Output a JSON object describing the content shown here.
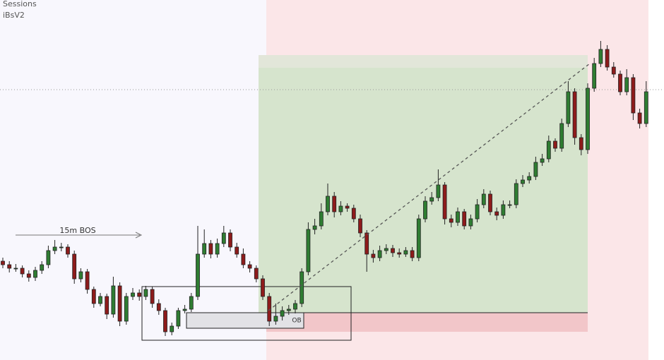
{
  "chart_data": {
    "type": "candlestick",
    "indicators": [
      "Sessions",
      "iBsV2"
    ],
    "annotations": {
      "bos": "15m BOS",
      "ob": "OB"
    },
    "ylim": [
      0,
      510
    ],
    "up_color": "#2f7d32",
    "down_color": "#8e1b1b",
    "open": [
      140,
      135,
      130,
      130,
      122,
      117,
      127,
      135,
      155,
      160,
      160,
      150,
      115,
      125,
      100,
      80,
      90,
      65,
      105,
      55,
      90,
      95,
      90,
      100,
      80,
      70,
      40,
      48,
      70,
      72,
      90,
      150,
      165,
      150,
      165,
      180,
      160,
      150,
      135,
      130,
      115,
      90,
      55,
      62,
      70,
      72,
      80,
      125,
      185,
      190,
      210,
      232,
      210,
      218,
      215,
      200,
      180,
      150,
      145,
      155,
      158,
      152,
      150,
      155,
      145,
      200,
      225,
      230,
      248,
      200,
      195,
      210,
      190,
      200,
      220,
      235,
      210,
      205,
      220,
      220,
      250,
      255,
      260,
      280,
      285,
      310,
      300,
      335,
      380,
      315,
      298,
      385,
      420,
      440,
      415,
      405,
      380,
      400,
      350,
      335
    ],
    "high": [
      145,
      140,
      136,
      134,
      127,
      132,
      140,
      162,
      170,
      166,
      164,
      155,
      130,
      129,
      104,
      95,
      94,
      118,
      110,
      95,
      102,
      100,
      105,
      104,
      86,
      74,
      53,
      74,
      78,
      95,
      190,
      185,
      170,
      172,
      190,
      185,
      166,
      158,
      140,
      134,
      120,
      95,
      80,
      76,
      78,
      85,
      130,
      195,
      200,
      222,
      250,
      238,
      225,
      222,
      220,
      206,
      184,
      156,
      162,
      164,
      163,
      158,
      160,
      160,
      206,
      232,
      238,
      270,
      252,
      206,
      216,
      214,
      206,
      228,
      242,
      240,
      216,
      226,
      226,
      256,
      262,
      266,
      288,
      292,
      318,
      314,
      342,
      395,
      385,
      320,
      392,
      428,
      452,
      446,
      422,
      410,
      412,
      405,
      356,
      395
    ],
    "low": [
      130,
      124,
      125,
      117,
      111,
      112,
      122,
      130,
      150,
      154,
      145,
      108,
      110,
      94,
      74,
      76,
      58,
      60,
      48,
      50,
      85,
      84,
      85,
      74,
      64,
      34,
      35,
      44,
      66,
      68,
      85,
      145,
      144,
      145,
      160,
      154,
      145,
      130,
      124,
      110,
      85,
      48,
      50,
      56,
      64,
      66,
      75,
      120,
      178,
      185,
      205,
      202,
      205,
      210,
      195,
      174,
      125,
      138,
      140,
      150,
      146,
      145,
      146,
      140,
      140,
      195,
      220,
      225,
      192,
      188,
      190,
      185,
      185,
      195,
      215,
      205,
      198,
      200,
      215,
      215,
      245,
      250,
      255,
      275,
      280,
      295,
      295,
      330,
      305,
      290,
      292,
      380,
      415,
      410,
      400,
      375,
      375,
      340,
      328,
      330
    ],
    "close": [
      135,
      130,
      130,
      122,
      117,
      127,
      135,
      155,
      160,
      160,
      150,
      115,
      125,
      100,
      80,
      90,
      65,
      105,
      55,
      90,
      95,
      90,
      100,
      80,
      70,
      40,
      48,
      70,
      72,
      90,
      150,
      165,
      150,
      165,
      180,
      160,
      150,
      135,
      130,
      115,
      90,
      55,
      62,
      70,
      72,
      80,
      125,
      185,
      190,
      210,
      232,
      210,
      218,
      215,
      200,
      180,
      150,
      145,
      155,
      158,
      152,
      150,
      155,
      145,
      200,
      225,
      230,
      248,
      200,
      195,
      210,
      190,
      200,
      220,
      235,
      210,
      205,
      220,
      220,
      250,
      255,
      260,
      280,
      285,
      310,
      300,
      335,
      380,
      315,
      298,
      385,
      420,
      440,
      415,
      405,
      380,
      400,
      350,
      335,
      380
    ]
  }
}
